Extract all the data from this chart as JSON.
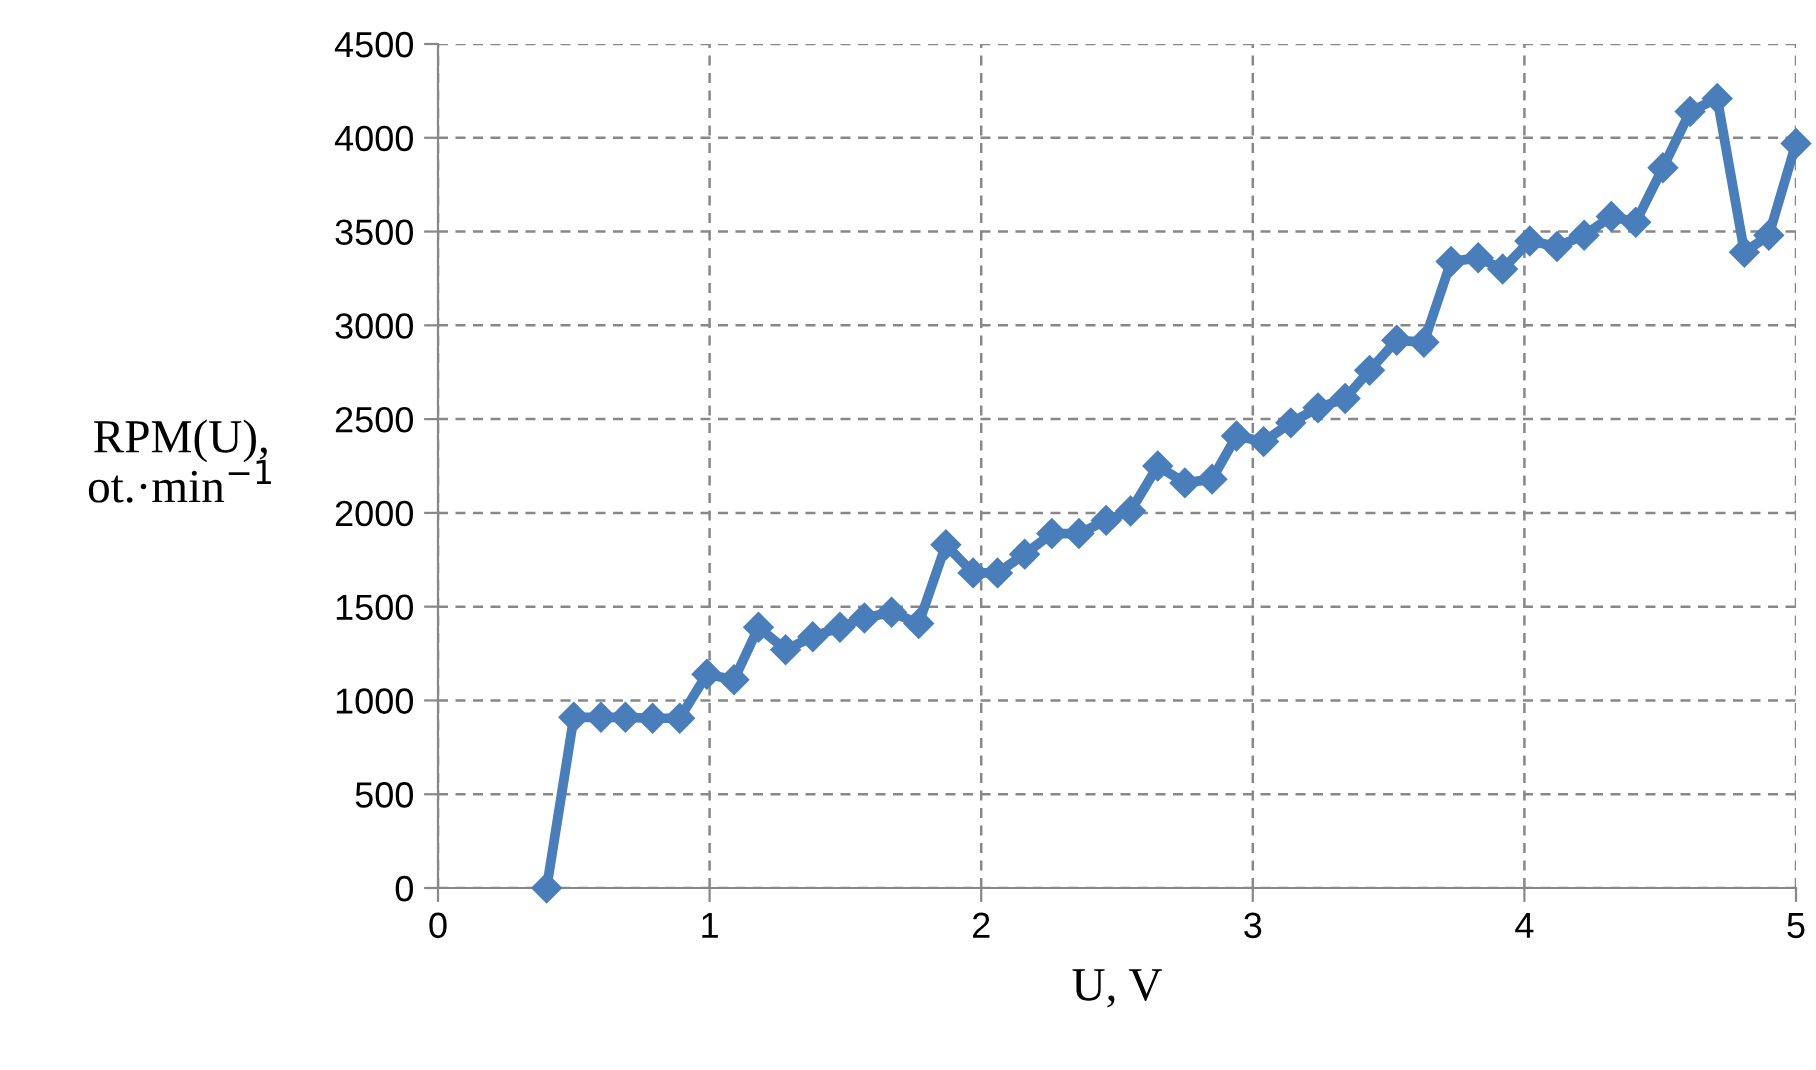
{
  "chart_data": {
    "type": "line",
    "xlabel": "U, V",
    "ylabel": "RPM(U),\not.·min$^{−1}$",
    "x": [
      0.4,
      0.5,
      0.6,
      0.69,
      0.79,
      0.89,
      0.99,
      1.09,
      1.18,
      1.28,
      1.38,
      1.48,
      1.57,
      1.67,
      1.77,
      1.87,
      1.97,
      2.06,
      2.16,
      2.26,
      2.36,
      2.46,
      2.55,
      2.65,
      2.75,
      2.85,
      2.94,
      3.04,
      3.14,
      3.24,
      3.34,
      3.43,
      3.53,
      3.63,
      3.73,
      3.83,
      3.92,
      4.02,
      4.12,
      4.22,
      4.32,
      4.41,
      4.51,
      4.61,
      4.71,
      4.81,
      4.9,
      5.0
    ],
    "series": [
      {
        "color": "#4a7ebb",
        "values": [
          0,
          910,
          910,
          910,
          905,
          905,
          1140,
          1110,
          1390,
          1270,
          1340,
          1390,
          1440,
          1470,
          1410,
          1830,
          1680,
          1680,
          1780,
          1890,
          1890,
          1960,
          2010,
          2250,
          2160,
          2180,
          2410,
          2380,
          2480,
          2560,
          2610,
          2760,
          2920,
          2910,
          3340,
          3360,
          3300,
          3450,
          3420,
          3480,
          3580,
          3550,
          3840,
          4140,
          4210,
          3390,
          3480,
          3970
        ]
      }
    ],
    "xlim": [
      0,
      5
    ],
    "xticks": [
      0,
      1,
      2,
      3,
      4,
      5
    ],
    "ylim": [
      0,
      4500
    ],
    "yticks": [
      0,
      500,
      1000,
      1500,
      2000,
      2500,
      3000,
      3500,
      4000,
      4500
    ],
    "grid": true,
    "marker": "diamond",
    "line_style": "solid"
  }
}
